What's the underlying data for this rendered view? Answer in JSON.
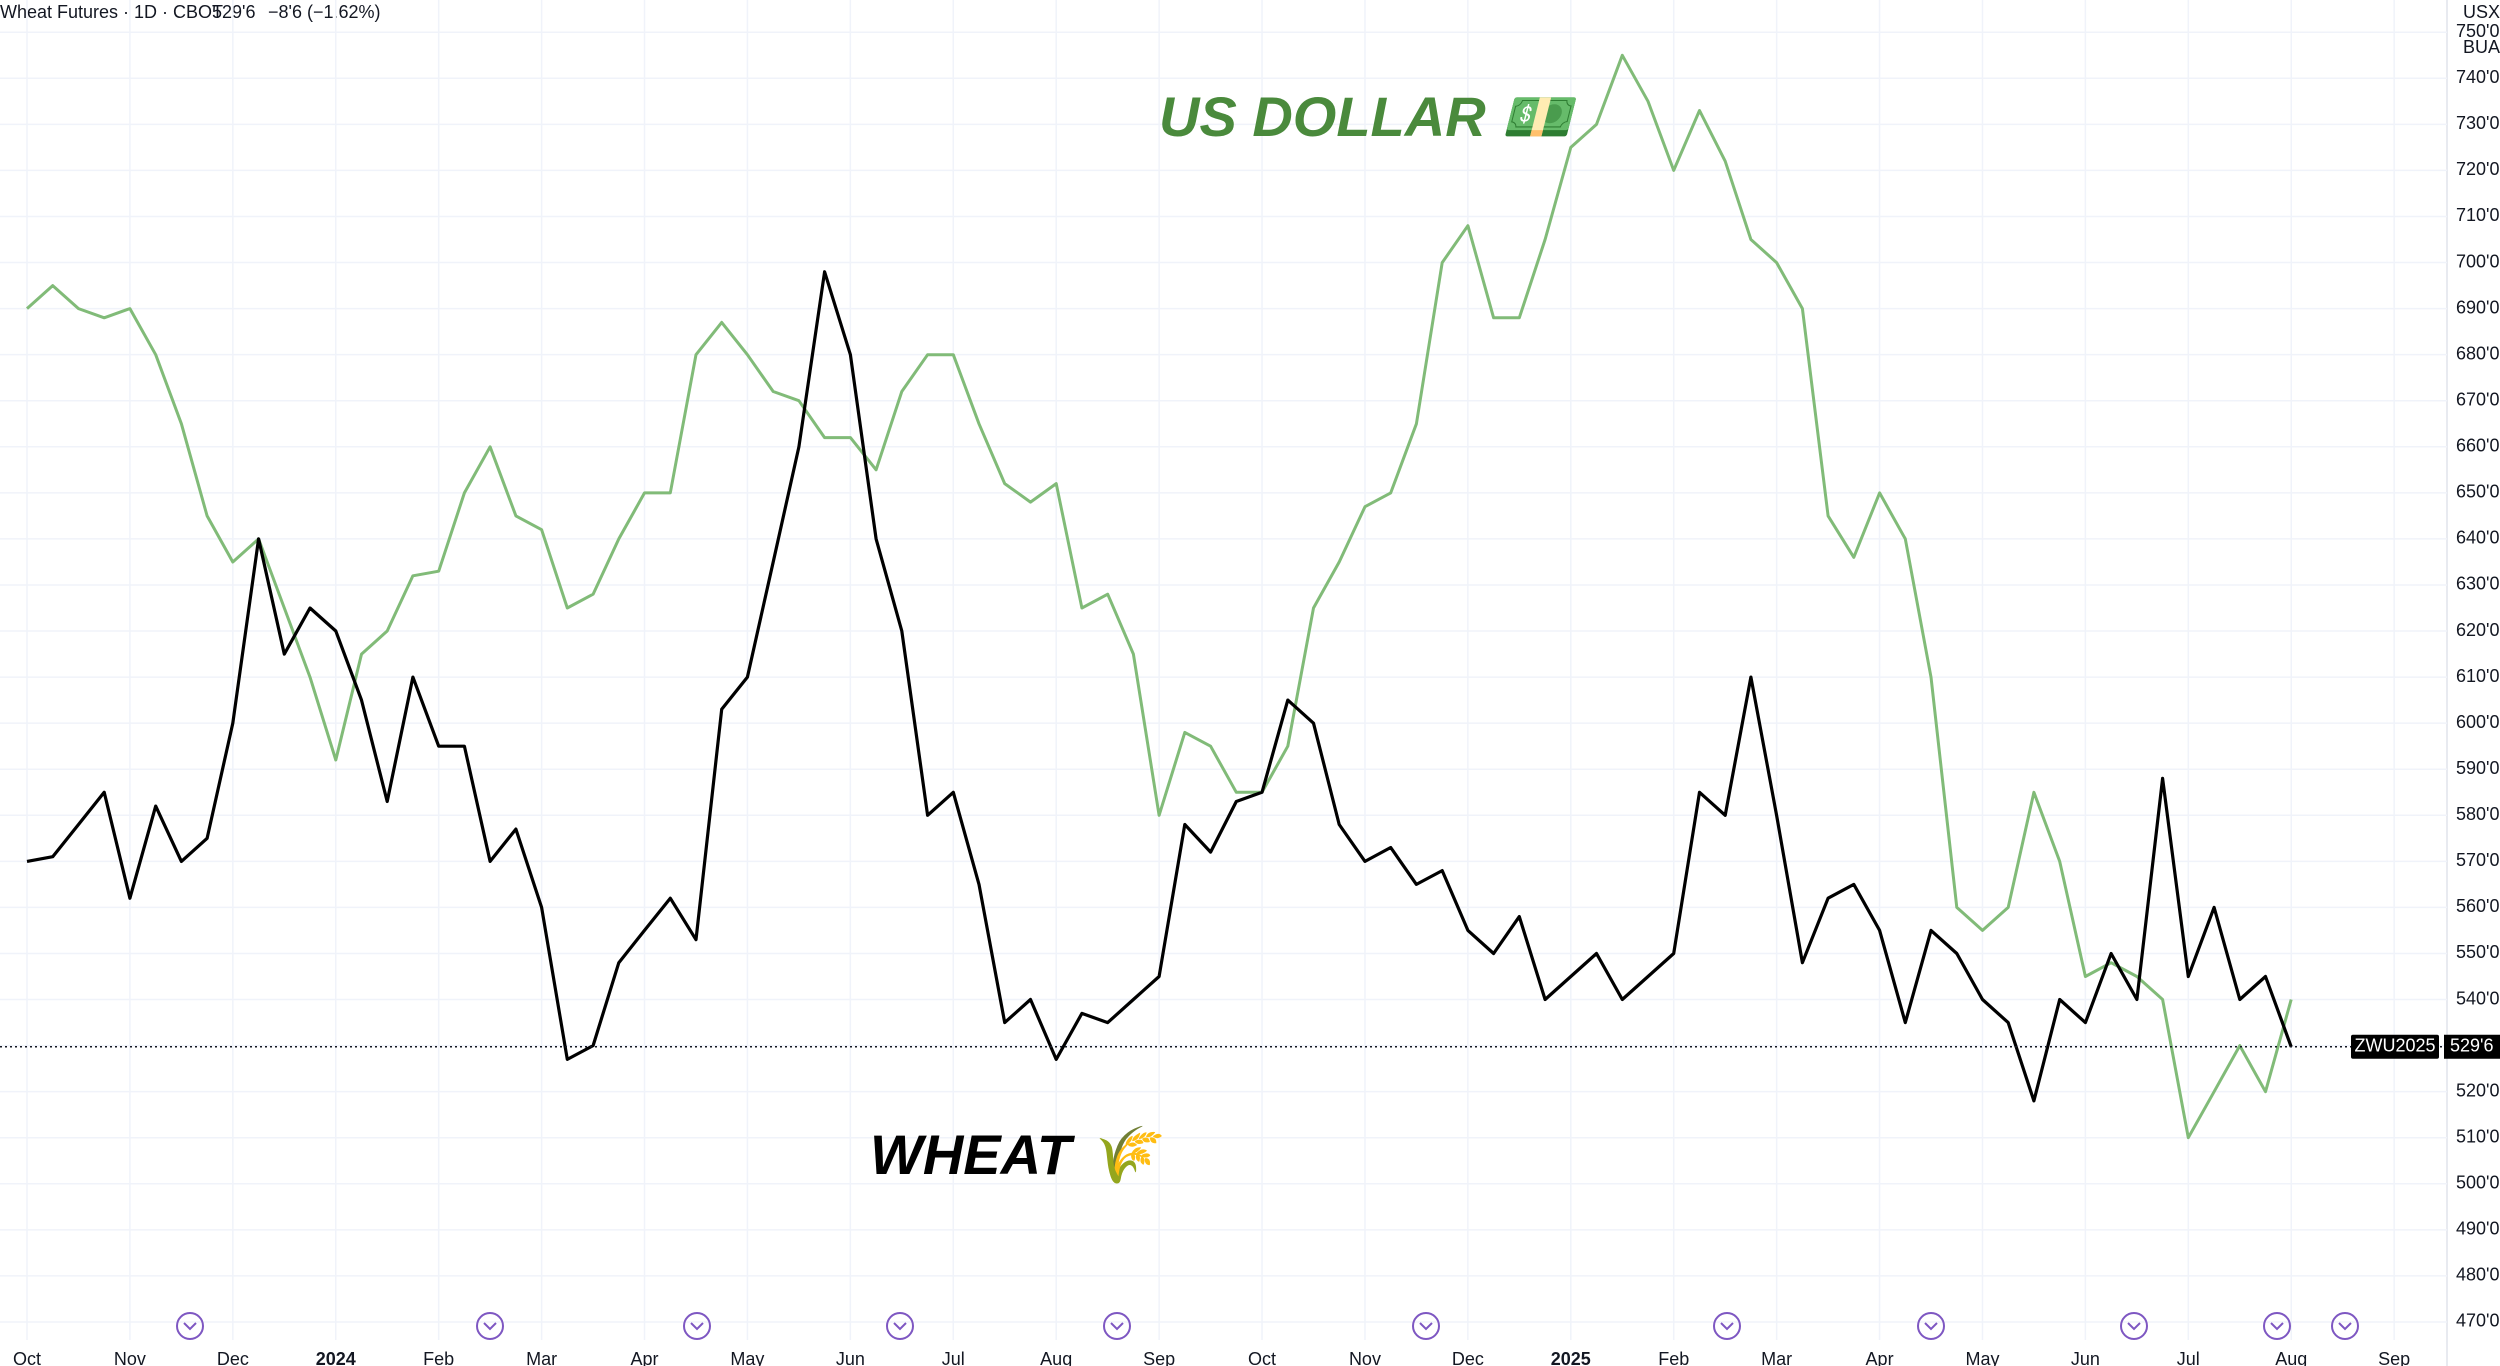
{
  "header": {
    "symbol": "Wheat Futures · 1D · CBOT",
    "price": "529'6",
    "change": "−8'6 (−1.62%)",
    "currency": "USX",
    "unit": "BUA"
  },
  "chart_data": {
    "type": "line",
    "annotations": [
      "US DOLLAR 💵",
      "WHEAT 🌾"
    ],
    "categories": [
      "Oct",
      null,
      null,
      null,
      "Nov",
      null,
      null,
      null,
      "Dec",
      null,
      null,
      null,
      "2024",
      null,
      null,
      null,
      "Feb",
      null,
      null,
      null,
      "Mar",
      null,
      null,
      null,
      "Apr",
      null,
      null,
      null,
      "May",
      null,
      null,
      null,
      "Jun",
      null,
      null,
      null,
      "Jul",
      null,
      null,
      null,
      "Aug",
      null,
      null,
      null,
      "Sep",
      null,
      null,
      null,
      "Oct",
      null,
      null,
      null,
      "Nov",
      null,
      null,
      null,
      "Dec",
      null,
      null,
      null,
      "2025",
      null,
      null,
      null,
      "Feb",
      null,
      null,
      null,
      "Mar",
      null,
      null,
      null,
      "Apr",
      null,
      null,
      null,
      "May",
      null,
      null,
      null,
      "Jun",
      null,
      null,
      null,
      "Jul",
      null,
      null,
      null,
      "Aug",
      null,
      null,
      null,
      "Sep"
    ],
    "series": [
      {
        "name": "ZWU2025",
        "color": "#000000",
        "values": [
          570,
          571,
          578,
          585,
          562,
          582,
          570,
          575,
          600,
          640,
          615,
          625,
          620,
          605,
          583,
          610,
          595,
          595,
          570,
          577,
          560,
          527,
          530,
          548,
          555,
          562,
          553,
          603,
          610,
          635,
          660,
          698,
          680,
          640,
          620,
          580,
          585,
          565,
          535,
          540,
          527,
          537,
          535,
          540,
          545,
          578,
          572,
          583,
          585,
          605,
          600,
          578,
          570,
          573,
          565,
          568,
          555,
          550,
          558,
          540,
          545,
          550,
          540,
          545,
          550,
          585,
          580,
          610,
          580,
          548,
          562,
          565,
          555,
          535,
          555,
          550,
          540,
          535,
          518,
          540,
          535,
          550,
          540,
          588,
          545,
          560,
          540,
          545,
          529.75,
          null,
          null,
          null,
          null
        ]
      },
      {
        "name": "US DOLLAR",
        "color": "#81bb78",
        "values": [
          690,
          695,
          690,
          688,
          690,
          680,
          665,
          645,
          635,
          640,
          625,
          610,
          592,
          615,
          620,
          632,
          633,
          650,
          660,
          645,
          642,
          625,
          628,
          640,
          650,
          650,
          680,
          687,
          680,
          672,
          670,
          662,
          662,
          655,
          672,
          680,
          680,
          665,
          652,
          648,
          652,
          625,
          628,
          615,
          580,
          598,
          595,
          585,
          585,
          595,
          625,
          635,
          647,
          650,
          665,
          700,
          708,
          688,
          688,
          705,
          725,
          730,
          745,
          735,
          720,
          733,
          722,
          705,
          700,
          690,
          645,
          636,
          650,
          640,
          610,
          560,
          555,
          560,
          585,
          570,
          545,
          548,
          545,
          540,
          510,
          520,
          530,
          520,
          540,
          null,
          null,
          null,
          null
        ]
      }
    ],
    "last_price": {
      "value": 529.75,
      "label": "529'6"
    },
    "ylim": [
      465,
      757
    ],
    "yticks": [
      {
        "value": 470,
        "label": "470'0"
      },
      {
        "value": 480,
        "label": "480'0"
      },
      {
        "value": 490,
        "label": "490'0"
      },
      {
        "value": 500,
        "label": "500'0"
      },
      {
        "value": 510,
        "label": "510'0"
      },
      {
        "value": 520,
        "label": "520'0"
      },
      {
        "value": 530,
        "label": "530'0"
      },
      {
        "value": 540,
        "label": "540'0"
      },
      {
        "value": 550,
        "label": "550'0"
      },
      {
        "value": 560,
        "label": "560'0"
      },
      {
        "value": 570,
        "label": "570'0"
      },
      {
        "value": 580,
        "label": "580'0"
      },
      {
        "value": 590,
        "label": "590'0"
      },
      {
        "value": 600,
        "label": "600'0"
      },
      {
        "value": 610,
        "label": "610'0"
      },
      {
        "value": 620,
        "label": "620'0"
      },
      {
        "value": 630,
        "label": "630'0"
      },
      {
        "value": 640,
        "label": "640'0"
      },
      {
        "value": 650,
        "label": "650'0"
      },
      {
        "value": 660,
        "label": "660'0"
      },
      {
        "value": 670,
        "label": "670'0"
      },
      {
        "value": 680,
        "label": "680'0"
      },
      {
        "value": 690,
        "label": "690'0"
      },
      {
        "value": 700,
        "label": "700'0"
      },
      {
        "value": 710,
        "label": "710'0"
      },
      {
        "value": 720,
        "label": "720'0"
      },
      {
        "value": 730,
        "label": "730'0"
      },
      {
        "value": 740,
        "label": "740'0"
      },
      {
        "value": 750,
        "label": "750'0"
      }
    ],
    "grid": true
  }
}
